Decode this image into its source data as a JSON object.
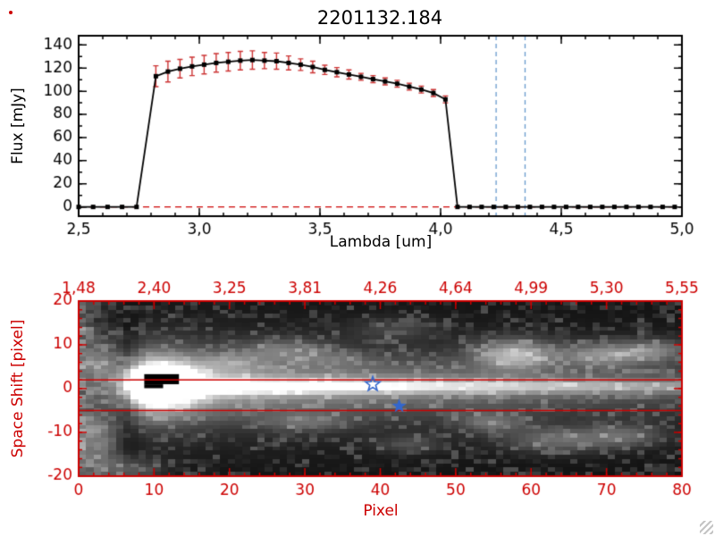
{
  "window": {
    "background": "#ffffff"
  },
  "chart_data": [
    {
      "type": "line",
      "title": "2201132.184",
      "xlabel": "Lambda [um]",
      "ylabel": "Flux [mJy]",
      "xlim": [
        2.5,
        5.0
      ],
      "ylim": [
        -8,
        148
      ],
      "box": {
        "l": 88,
        "t": 40,
        "r": 763,
        "b": 242
      },
      "x_ticks": [
        {
          "v": 2.5,
          "label": "2,5"
        },
        {
          "v": 3.0,
          "label": "3,0"
        },
        {
          "v": 3.5,
          "label": "3,5"
        },
        {
          "v": 4.0,
          "label": "4,0"
        },
        {
          "v": 4.5,
          "label": "4,5"
        },
        {
          "v": 5.0,
          "label": "5,0"
        }
      ],
      "x_minor_step": 0.1,
      "y_ticks": [
        {
          "v": 0,
          "label": "0"
        },
        {
          "v": 20,
          "label": "20"
        },
        {
          "v": 40,
          "label": "40"
        },
        {
          "v": 60,
          "label": "60"
        },
        {
          "v": 80,
          "label": "80"
        },
        {
          "v": 100,
          "label": "100"
        },
        {
          "v": 120,
          "label": "120"
        },
        {
          "v": 140,
          "label": "140"
        }
      ],
      "y_minor_step": 10,
      "line_color": "#000000",
      "marker": "filled-square",
      "marker_size": 5,
      "error_color": "#cc3333",
      "zero_line": {
        "y": 0,
        "color": "#cc0000",
        "dash": [
          7,
          5
        ]
      },
      "guide_lines": {
        "x_values": [
          4.23,
          4.35
        ],
        "color": "#6699cc",
        "dash": [
          5,
          4
        ]
      },
      "points": [
        [
          2.5,
          0,
          0
        ],
        [
          2.56,
          0,
          0
        ],
        [
          2.62,
          0,
          0
        ],
        [
          2.68,
          0,
          0
        ],
        [
          2.74,
          0,
          0
        ],
        [
          2.82,
          113,
          9
        ],
        [
          2.87,
          117,
          9
        ],
        [
          2.92,
          119.5,
          8
        ],
        [
          2.97,
          121.5,
          8
        ],
        [
          3.02,
          123,
          8
        ],
        [
          3.07,
          124.5,
          8
        ],
        [
          3.12,
          125.5,
          8
        ],
        [
          3.17,
          126.5,
          8
        ],
        [
          3.22,
          127,
          8
        ],
        [
          3.27,
          126.5,
          7
        ],
        [
          3.32,
          126,
          7
        ],
        [
          3.37,
          124.5,
          6
        ],
        [
          3.42,
          123,
          5
        ],
        [
          3.47,
          121,
          5
        ],
        [
          3.52,
          118.5,
          4
        ],
        [
          3.57,
          116.5,
          4
        ],
        [
          3.62,
          114.5,
          4
        ],
        [
          3.67,
          112.5,
          3
        ],
        [
          3.72,
          110.5,
          3
        ],
        [
          3.77,
          108.5,
          3
        ],
        [
          3.82,
          106.5,
          3
        ],
        [
          3.87,
          104,
          3
        ],
        [
          3.92,
          101.5,
          3
        ],
        [
          3.97,
          98.5,
          3
        ],
        [
          4.02,
          93,
          3
        ],
        [
          4.07,
          0,
          0
        ],
        [
          4.12,
          0,
          0
        ],
        [
          4.17,
          0,
          0
        ],
        [
          4.22,
          0,
          0
        ],
        [
          4.27,
          0,
          0
        ],
        [
          4.32,
          0,
          0
        ],
        [
          4.37,
          0,
          0
        ],
        [
          4.42,
          0,
          0
        ],
        [
          4.47,
          0,
          0
        ],
        [
          4.52,
          0,
          0
        ],
        [
          4.57,
          0,
          0
        ],
        [
          4.62,
          0,
          0
        ],
        [
          4.67,
          0,
          0
        ],
        [
          4.72,
          0,
          0
        ],
        [
          4.77,
          0,
          0
        ],
        [
          4.82,
          0,
          0
        ],
        [
          4.87,
          0,
          0
        ],
        [
          4.92,
          0,
          0
        ],
        [
          4.97,
          0,
          0
        ]
      ]
    },
    {
      "type": "heatmap",
      "xlabel": "Pixel",
      "ylabel": "Space Shift [pixel]",
      "xlim": [
        0,
        80
      ],
      "ylim": [
        -20,
        20
      ],
      "box": {
        "l": 88,
        "t": 337,
        "r": 763,
        "b": 533
      },
      "axis_color": "#cc0000",
      "x_ticks": [
        {
          "v": 0,
          "label": "0"
        },
        {
          "v": 10,
          "label": "10"
        },
        {
          "v": 20,
          "label": "20"
        },
        {
          "v": 30,
          "label": "30"
        },
        {
          "v": 40,
          "label": "40"
        },
        {
          "v": 50,
          "label": "50"
        },
        {
          "v": 60,
          "label": "60"
        },
        {
          "v": 70,
          "label": "70"
        },
        {
          "v": 80,
          "label": "80"
        }
      ],
      "x_minor_step": 2,
      "y_ticks": [
        {
          "v": 20,
          "label": "20"
        },
        {
          "v": 10,
          "label": "10"
        },
        {
          "v": 0,
          "label": "0"
        },
        {
          "v": -10,
          "label": "-10"
        },
        {
          "v": -20,
          "label": "-20"
        }
      ],
      "y_minor_step": 2,
      "top_axis_labels": [
        {
          "v": 0,
          "label": "1,48"
        },
        {
          "v": 10,
          "label": "2,40"
        },
        {
          "v": 20,
          "label": "3,25"
        },
        {
          "v": 30,
          "label": "3,81"
        },
        {
          "v": 40,
          "label": "4,26"
        },
        {
          "v": 50,
          "label": "4,64"
        },
        {
          "v": 60,
          "label": "4,99"
        },
        {
          "v": 70,
          "label": "5,30"
        },
        {
          "v": 80,
          "label": "5,55"
        }
      ],
      "aperture_lines": {
        "y_values": [
          2,
          -5
        ],
        "color": "#cc0000"
      },
      "stars": {
        "color": "#3366cc",
        "points": [
          {
            "x": 39,
            "y": 1,
            "filled": false
          },
          {
            "x": 42.5,
            "y": -4,
            "filled": true
          }
        ]
      },
      "image_model": {
        "noise_amp": 0.1,
        "streak": {
          "y_center": 0.5,
          "core_sigma": 1.2,
          "halo_amp": 0.45,
          "halo_sigma": 4.5,
          "wide_amp": 0.15,
          "wide_sigma": 9,
          "start_x": 6,
          "peak_x": 10,
          "decay": 60,
          "amp": 1.05
        },
        "saturated_blob": {
          "x": 10.5,
          "y": 1,
          "sx": 2.6,
          "sy": 2.3,
          "amp": 2.6
        },
        "dark_rects": [
          {
            "x0": 8.7,
            "x1": 13.3,
            "y0": 1.0,
            "y1": 3.3
          },
          {
            "x0": 8.7,
            "x1": 11.2,
            "y0": 0.1,
            "y1": 1.0
          }
        ],
        "blobs": [
          {
            "x": 10,
            "y": 1,
            "sx": 4.5,
            "sy": 5,
            "amp": 0.5
          },
          {
            "x": 20,
            "y": 6,
            "sx": 3,
            "sy": 1.6,
            "amp": 0.2
          },
          {
            "x": 27,
            "y": 9,
            "sx": 4,
            "sy": 1.8,
            "amp": 0.25
          },
          {
            "x": 34,
            "y": 7,
            "sx": 3,
            "sy": 1.4,
            "amp": 0.13
          },
          {
            "x": 42,
            "y": 14,
            "sx": 4,
            "sy": 1.8,
            "amp": 0.13
          },
          {
            "x": 58,
            "y": 8,
            "sx": 3.5,
            "sy": 2.4,
            "amp": 0.55
          },
          {
            "x": 70,
            "y": 8,
            "sx": 4,
            "sy": 2.0,
            "amp": 0.38
          },
          {
            "x": 77,
            "y": 9,
            "sx": 3,
            "sy": 1.7,
            "amp": 0.3
          },
          {
            "x": 30,
            "y": -8,
            "sx": 4,
            "sy": 1.5,
            "amp": 0.2
          },
          {
            "x": 44,
            "y": -13,
            "sx": 3,
            "sy": 1.5,
            "amp": 0.16
          },
          {
            "x": 55,
            "y": -8,
            "sx": 3,
            "sy": 1.6,
            "amp": 0.26
          },
          {
            "x": 64,
            "y": -12,
            "sx": 5,
            "sy": 2,
            "amp": 0.28
          },
          {
            "x": 73,
            "y": -11,
            "sx": 3.5,
            "sy": 1.8,
            "amp": 0.24
          },
          {
            "x": 2,
            "y": 6,
            "sx": 2,
            "sy": 4,
            "amp": 0.25
          },
          {
            "x": 2,
            "y": -12,
            "sx": 2,
            "sy": 5,
            "amp": 0.28
          },
          {
            "x": 6,
            "y": -19,
            "sx": 3,
            "sy": 2,
            "amp": 0.22
          }
        ]
      }
    }
  ]
}
